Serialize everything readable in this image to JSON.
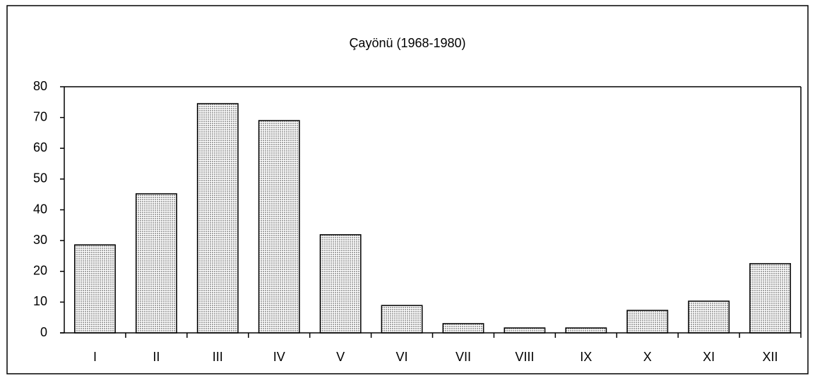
{
  "chart_data": {
    "type": "bar",
    "title": "Çayönü (1968-1980)",
    "categories": [
      "I",
      "II",
      "III",
      "IV",
      "V",
      "VI",
      "VII",
      "VIII",
      "IX",
      "X",
      "XI",
      "XII"
    ],
    "values": [
      28.6,
      45.2,
      74.5,
      69,
      31.9,
      8.9,
      3,
      1.6,
      1.6,
      7.3,
      10.3,
      22.5
    ],
    "color": "#c0c0c0",
    "ylim": [
      0,
      80
    ],
    "yticks": [
      0,
      10,
      20,
      30,
      40,
      50,
      60,
      70,
      80
    ],
    "grid": false
  }
}
